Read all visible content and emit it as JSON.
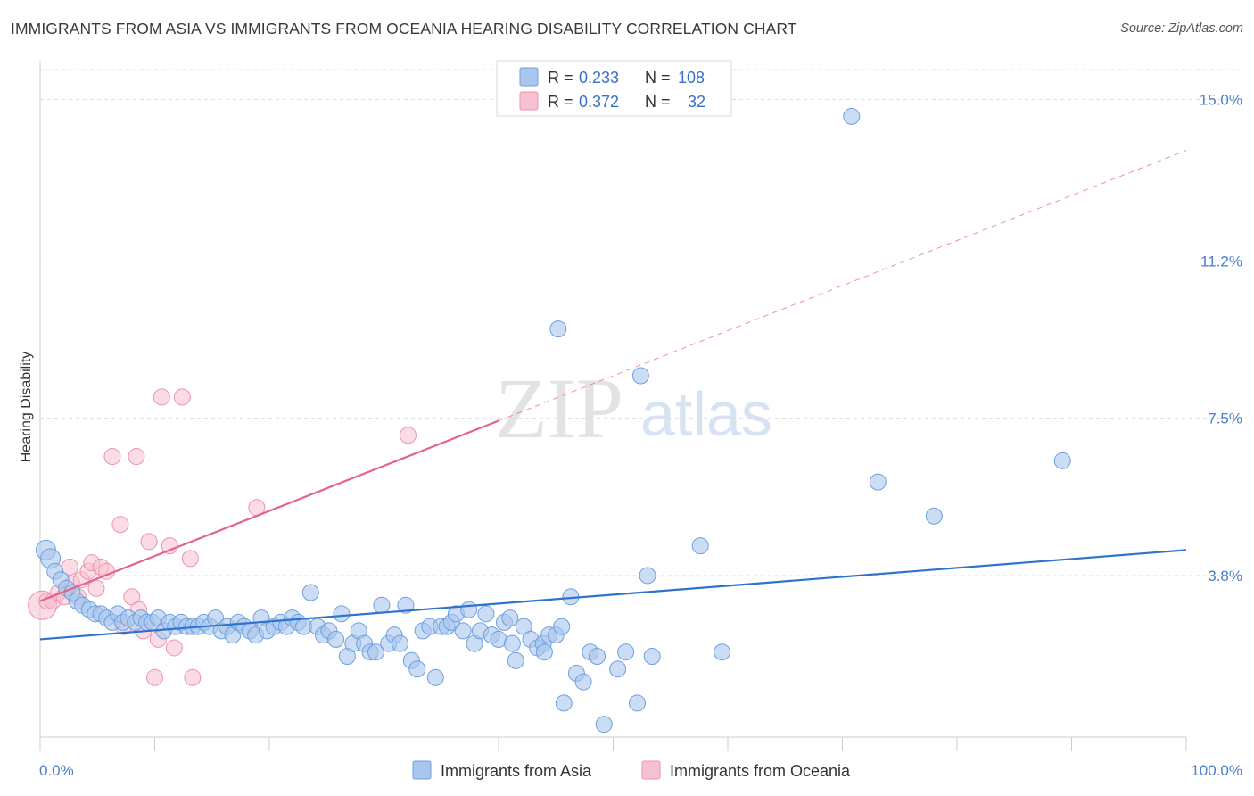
{
  "header": {
    "title": "IMMIGRANTS FROM ASIA VS IMMIGRANTS FROM OCEANIA HEARING DISABILITY CORRELATION CHART",
    "source": "Source: ZipAtlas.com"
  },
  "watermark": {
    "zip": "ZIP",
    "atlas": "atlas"
  },
  "colors": {
    "asia_fill": "#a9c6ef",
    "asia_stroke": "#6f9fdd",
    "asia_line": "#2f74cc",
    "oceania_fill": "#f7c0d0",
    "oceania_stroke": "#eb93ad",
    "oceania_line": "#e3638c",
    "tick_label": "#4a7fcb",
    "grid": "#dddddd"
  },
  "legend": {
    "rows": [
      {
        "r_label": "R = ",
        "r_value": "0.233",
        "n_label": "N = ",
        "n_value": "108"
      },
      {
        "r_label": "R = ",
        "r_value": "0.372",
        "n_label": "N = ",
        "n_value": "32"
      }
    ]
  },
  "bottom_legend": [
    {
      "label": "Immigrants from Asia"
    },
    {
      "label": "Immigrants from Oceania"
    }
  ],
  "chart_data": {
    "type": "scatter",
    "title": "IMMIGRANTS FROM ASIA VS IMMIGRANTS FROM OCEANIA HEARING DISABILITY CORRELATION CHART",
    "xlabel": "",
    "ylabel": "Hearing Disability",
    "xlim": [
      0,
      100
    ],
    "ylim": [
      0,
      15.7
    ],
    "x_ticks": {
      "labels": [
        "0.0%",
        "100.0%"
      ],
      "values": [
        0,
        100
      ]
    },
    "y_ticks": {
      "labels": [
        "3.8%",
        "7.5%",
        "11.2%",
        "15.0%"
      ],
      "values": [
        3.8,
        7.5,
        11.2,
        15.0
      ]
    },
    "grid": "horizontal dashed",
    "legend_position": "top-center",
    "series": [
      {
        "name": "Immigrants from Asia",
        "r": 0.233,
        "n": 108,
        "trend": {
          "x": [
            0,
            100
          ],
          "y": [
            2.3,
            4.4
          ],
          "style": "solid"
        },
        "points": [
          [
            0.5,
            4.4
          ],
          [
            0.9,
            4.2
          ],
          [
            1.3,
            3.9
          ],
          [
            1.8,
            3.7
          ],
          [
            2.3,
            3.5
          ],
          [
            2.8,
            3.4
          ],
          [
            3.2,
            3.2
          ],
          [
            3.7,
            3.1
          ],
          [
            4.3,
            3.0
          ],
          [
            4.8,
            2.9
          ],
          [
            5.3,
            2.9
          ],
          [
            5.8,
            2.8
          ],
          [
            6.3,
            2.7
          ],
          [
            6.8,
            2.9
          ],
          [
            7.2,
            2.7
          ],
          [
            7.7,
            2.8
          ],
          [
            8.3,
            2.7
          ],
          [
            8.8,
            2.8
          ],
          [
            9.3,
            2.7
          ],
          [
            9.8,
            2.7
          ],
          [
            10.3,
            2.8
          ],
          [
            10.8,
            2.5
          ],
          [
            11.3,
            2.7
          ],
          [
            11.8,
            2.6
          ],
          [
            12.3,
            2.7
          ],
          [
            12.8,
            2.6
          ],
          [
            13.3,
            2.6
          ],
          [
            13.8,
            2.6
          ],
          [
            14.3,
            2.7
          ],
          [
            14.8,
            2.6
          ],
          [
            15.3,
            2.8
          ],
          [
            15.8,
            2.5
          ],
          [
            16.3,
            2.6
          ],
          [
            16.8,
            2.4
          ],
          [
            17.3,
            2.7
          ],
          [
            17.8,
            2.6
          ],
          [
            18.3,
            2.5
          ],
          [
            18.8,
            2.4
          ],
          [
            19.3,
            2.8
          ],
          [
            19.8,
            2.5
          ],
          [
            20.4,
            2.6
          ],
          [
            21.0,
            2.7
          ],
          [
            21.5,
            2.6
          ],
          [
            22.0,
            2.8
          ],
          [
            22.5,
            2.7
          ],
          [
            23.0,
            2.6
          ],
          [
            23.6,
            3.4
          ],
          [
            24.2,
            2.6
          ],
          [
            24.7,
            2.4
          ],
          [
            25.2,
            2.5
          ],
          [
            25.8,
            2.3
          ],
          [
            26.3,
            2.9
          ],
          [
            26.8,
            1.9
          ],
          [
            27.3,
            2.2
          ],
          [
            27.8,
            2.5
          ],
          [
            28.3,
            2.2
          ],
          [
            28.8,
            2.0
          ],
          [
            29.3,
            2.0
          ],
          [
            29.8,
            3.1
          ],
          [
            30.4,
            2.2
          ],
          [
            30.9,
            2.4
          ],
          [
            31.4,
            2.2
          ],
          [
            31.9,
            3.1
          ],
          [
            32.4,
            1.8
          ],
          [
            32.9,
            1.6
          ],
          [
            33.4,
            2.5
          ],
          [
            34.0,
            2.6
          ],
          [
            34.5,
            1.4
          ],
          [
            35.0,
            2.6
          ],
          [
            35.5,
            2.6
          ],
          [
            35.9,
            2.7
          ],
          [
            36.3,
            2.9
          ],
          [
            36.9,
            2.5
          ],
          [
            37.4,
            3.0
          ],
          [
            37.9,
            2.2
          ],
          [
            38.4,
            2.5
          ],
          [
            38.9,
            2.9
          ],
          [
            39.4,
            2.4
          ],
          [
            40.0,
            2.3
          ],
          [
            40.5,
            2.7
          ],
          [
            41.0,
            2.8
          ],
          [
            41.5,
            1.8
          ],
          [
            41.2,
            2.2
          ],
          [
            42.2,
            2.6
          ],
          [
            42.8,
            2.3
          ],
          [
            43.4,
            2.1
          ],
          [
            43.9,
            2.2
          ],
          [
            44.4,
            2.4
          ],
          [
            45.0,
            2.4
          ],
          [
            45.5,
            2.6
          ],
          [
            44.0,
            2.0
          ],
          [
            45.2,
            9.6
          ],
          [
            45.7,
            0.8
          ],
          [
            46.3,
            3.3
          ],
          [
            46.8,
            1.5
          ],
          [
            47.4,
            1.3
          ],
          [
            48.0,
            2.0
          ],
          [
            48.6,
            1.9
          ],
          [
            49.2,
            0.3
          ],
          [
            50.4,
            1.6
          ],
          [
            51.1,
            2.0
          ],
          [
            52.1,
            0.8
          ],
          [
            52.4,
            8.5
          ],
          [
            53.0,
            3.8
          ],
          [
            53.4,
            1.9
          ],
          [
            57.6,
            4.5
          ],
          [
            59.5,
            2.0
          ],
          [
            73.1,
            6.0
          ],
          [
            78.0,
            5.2
          ],
          [
            70.8,
            14.6
          ],
          [
            89.2,
            6.5
          ]
        ]
      },
      {
        "name": "Immigrants from Oceania",
        "r": 0.372,
        "n": 32,
        "trend": {
          "x": [
            0,
            100
          ],
          "y": [
            3.2,
            13.8
          ],
          "solid_until_x": 40,
          "style": "solid-then-dashed"
        },
        "points": [
          [
            0.2,
            3.1
          ],
          [
            0.6,
            3.2
          ],
          [
            1.1,
            3.2
          ],
          [
            1.6,
            3.4
          ],
          [
            2.1,
            3.3
          ],
          [
            2.6,
            4.0
          ],
          [
            2.8,
            3.6
          ],
          [
            3.3,
            3.3
          ],
          [
            3.6,
            3.7
          ],
          [
            4.2,
            3.9
          ],
          [
            4.5,
            4.1
          ],
          [
            4.9,
            3.5
          ],
          [
            5.3,
            4.0
          ],
          [
            5.8,
            3.9
          ],
          [
            6.3,
            6.6
          ],
          [
            7.0,
            5.0
          ],
          [
            7.3,
            2.6
          ],
          [
            8.0,
            3.3
          ],
          [
            8.4,
            6.6
          ],
          [
            8.6,
            3.0
          ],
          [
            9.0,
            2.5
          ],
          [
            9.5,
            4.6
          ],
          [
            10.0,
            1.4
          ],
          [
            10.3,
            2.3
          ],
          [
            10.6,
            8.0
          ],
          [
            11.3,
            4.5
          ],
          [
            11.7,
            2.1
          ],
          [
            12.4,
            8.0
          ],
          [
            13.1,
            4.2
          ],
          [
            13.3,
            1.4
          ],
          [
            18.9,
            5.4
          ],
          [
            32.1,
            7.1
          ]
        ]
      }
    ]
  }
}
